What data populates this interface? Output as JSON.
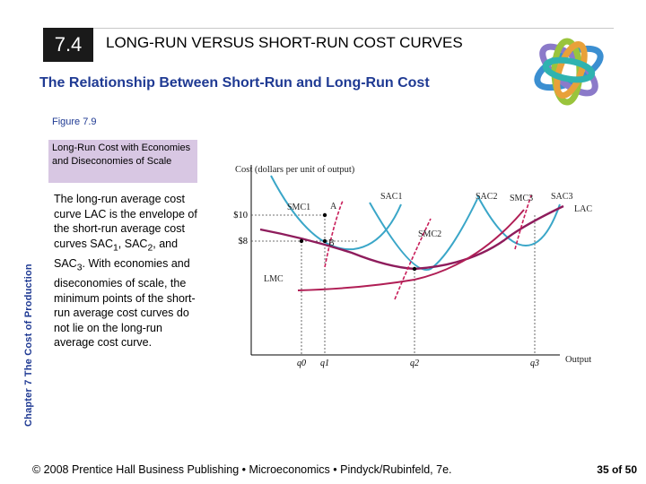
{
  "header": {
    "section_number": "7.4",
    "title": "LONG-RUN VERSUS SHORT-RUN COST CURVES",
    "subtitle": "The Relationship Between Short-Run and Long-Run Cost"
  },
  "sidebar": {
    "chapter_label": "Chapter 7 The Cost of Production"
  },
  "figure": {
    "number_label": "Figure 7.9",
    "caption": "Long-Run Cost with Economies and Diseconomies of Scale",
    "description_parts": [
      "The long-run average cost curve LAC is the envelope of the short-run average cost curves SAC",
      "1",
      ", SAC",
      "2",
      ", and SAC",
      "3",
      ". With economies and diseconomies of scale, the minimum points of the short-run average cost curves do not lie on the long-run average cost curve."
    ]
  },
  "chart_data": {
    "type": "line",
    "ylabel": "Cost (dollars per unit of output)",
    "xlabel": "Output",
    "y_ticks": [
      "$10",
      "$8"
    ],
    "x_ticks": [
      "q0",
      "q1",
      "q2",
      "q3"
    ],
    "curve_labels": {
      "sac1": "SAC1",
      "sac2": "SAC2",
      "sac3": "SAC3",
      "smc1": "SMC1",
      "smc2": "SMC2",
      "smc3": "SMC3",
      "lac": "LAC",
      "lmc": "LMC"
    },
    "points": {
      "a": "A",
      "b": "B"
    },
    "colors": {
      "sac": "#3aa6c8",
      "smc": "#c81e5a",
      "lac": "#8e1c5c",
      "lmc": "#b01e55",
      "guides": "#333333"
    }
  },
  "footer": {
    "copyright": "© 2008 Prentice Hall Business Publishing • Microeconomics • Pindyck/Rubinfeld, 7e.",
    "page": "35 of 50"
  }
}
